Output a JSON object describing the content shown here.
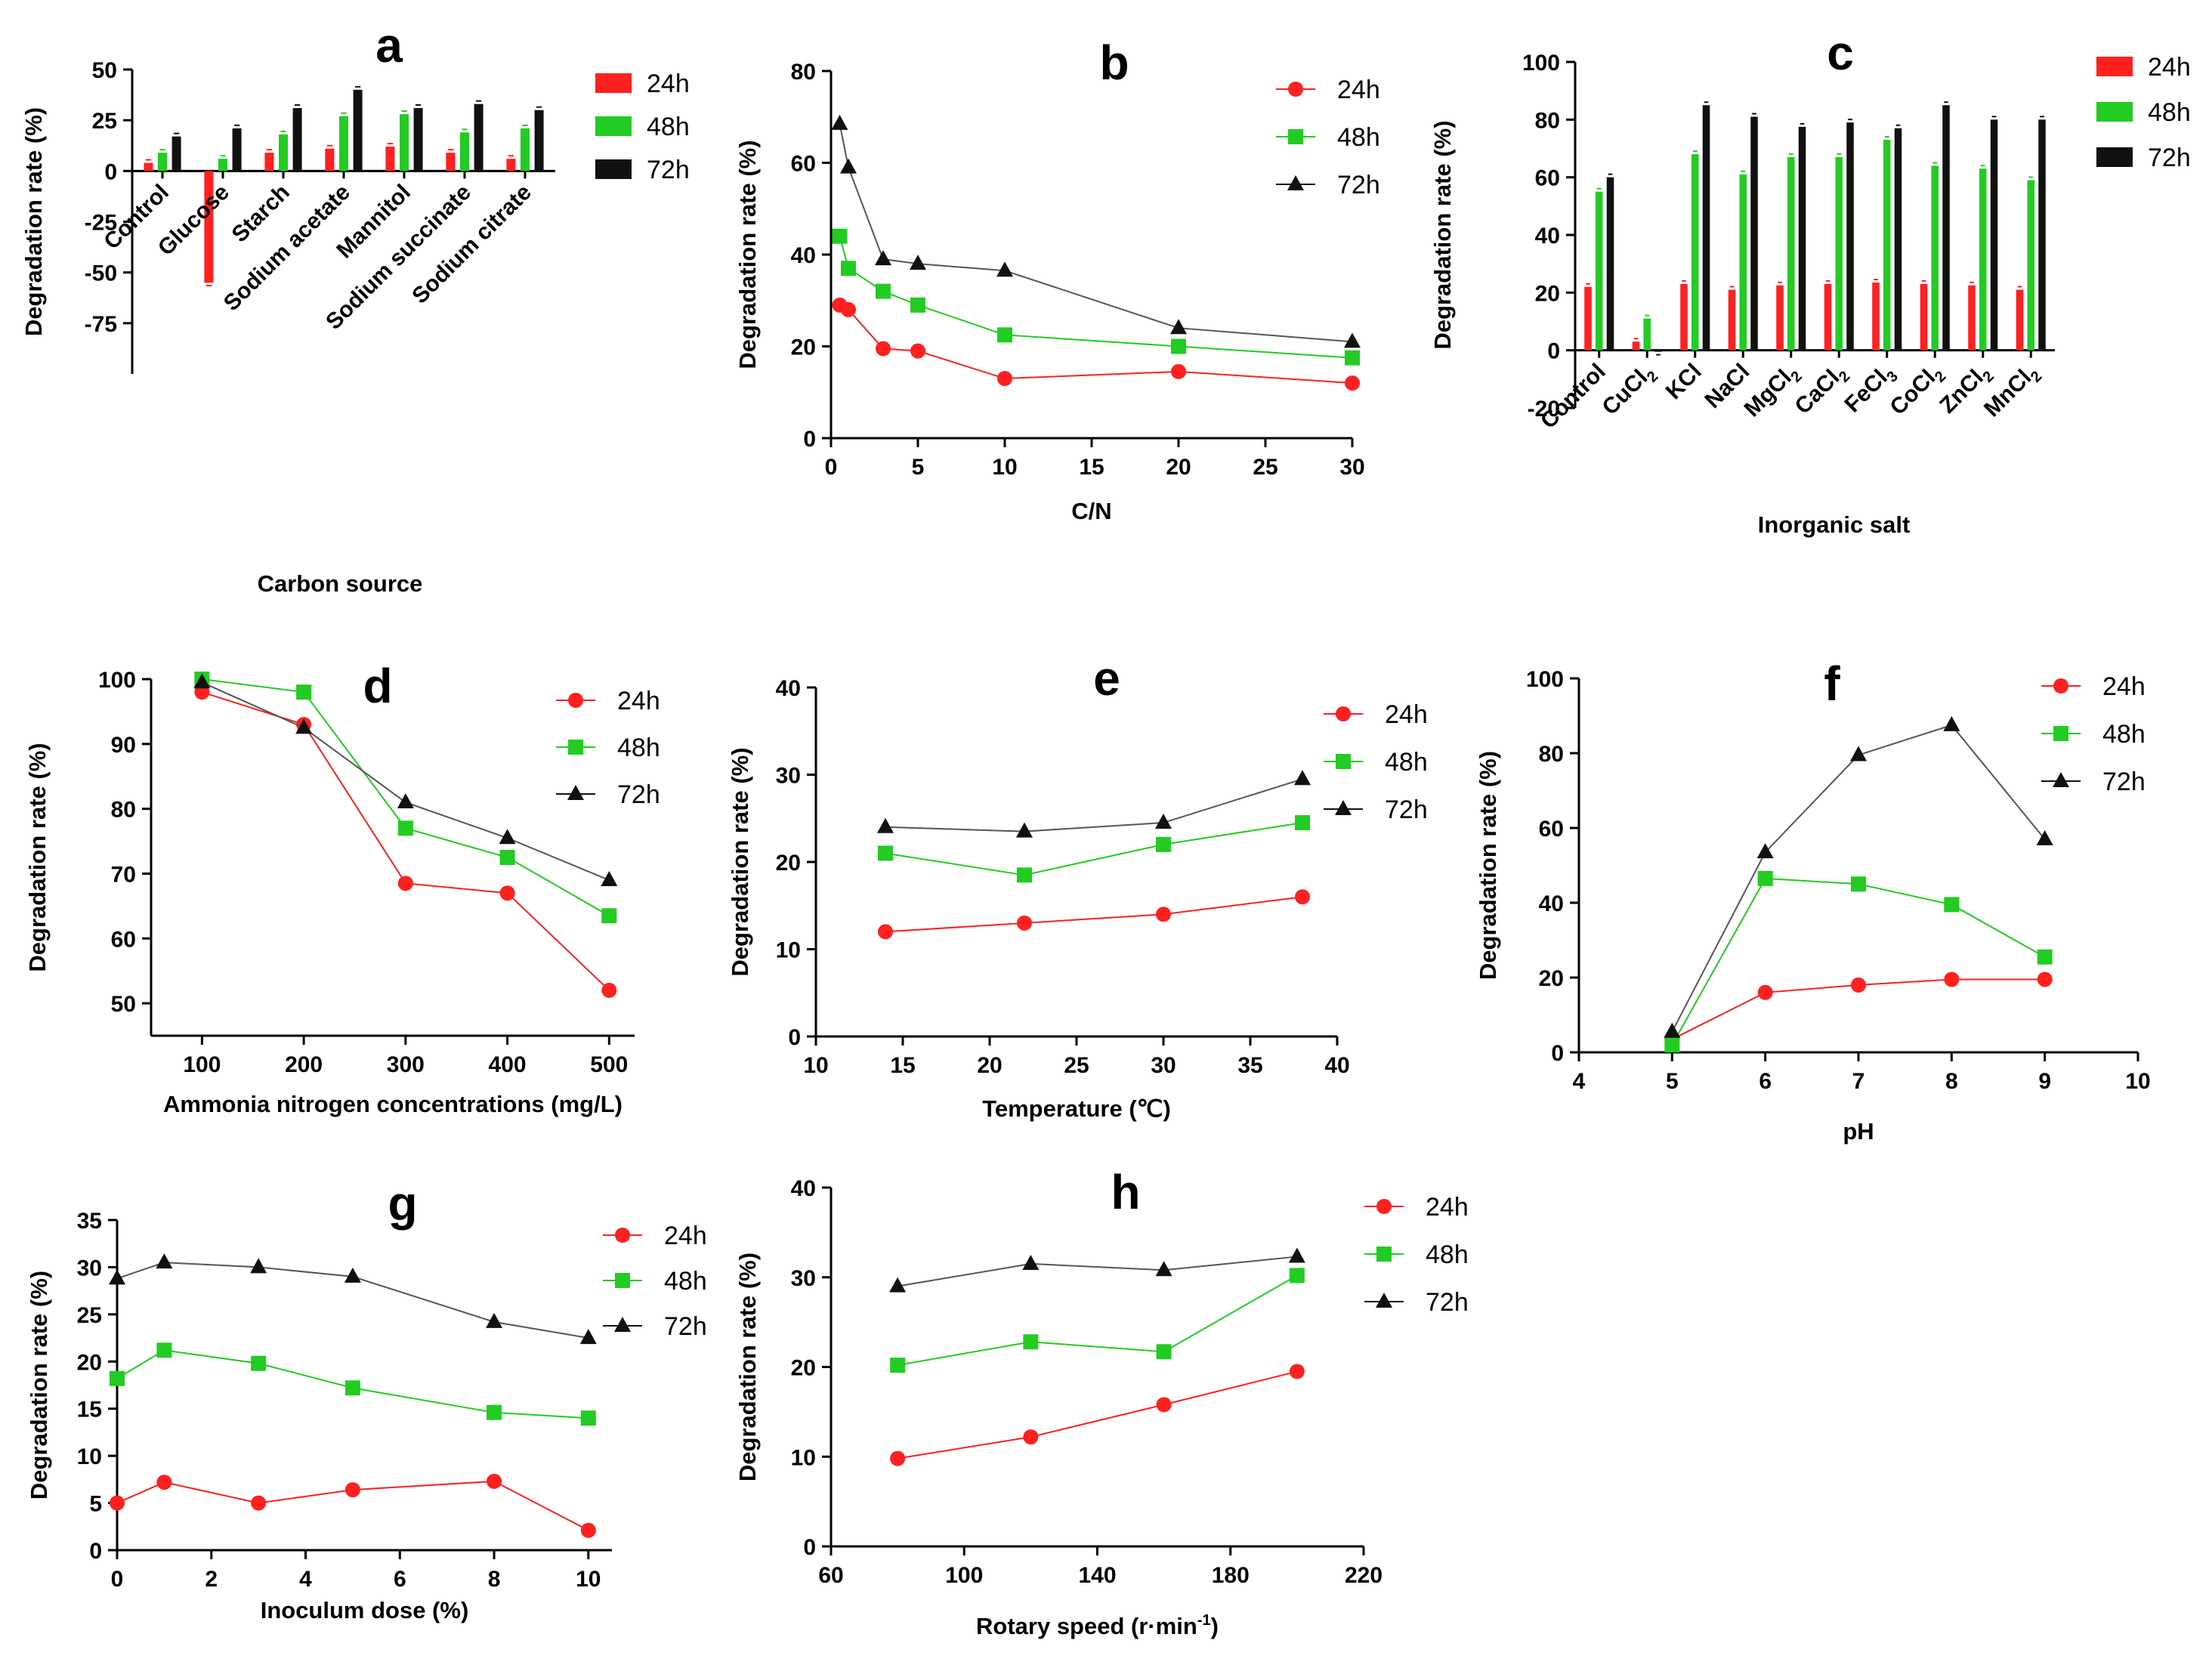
{
  "colors": {
    "24h": "#ff2020",
    "48h": "#22cc22",
    "72h": "#111111"
  },
  "chart_data": [
    {
      "id": "a",
      "type": "bar",
      "title": "a",
      "xlabel": "Carbon source",
      "ylabel": "Degradation rate (%)",
      "ylim": [
        -100,
        50
      ],
      "yticks": [
        50,
        25,
        0,
        -25,
        -50,
        -75
      ],
      "categories": [
        "Control",
        "Glucose",
        "Starch",
        "Sodium acetate",
        "Mannitol",
        "Sodium succinate",
        "Sodium citrate"
      ],
      "series": [
        {
          "name": "24h",
          "values": [
            4,
            -55,
            9,
            11,
            12,
            9,
            6
          ]
        },
        {
          "name": "48h",
          "values": [
            9,
            6,
            18,
            27,
            28,
            19,
            21
          ]
        },
        {
          "name": "72h",
          "values": [
            17,
            21,
            31,
            40,
            31,
            33,
            30
          ]
        }
      ],
      "legend": "top-right"
    },
    {
      "id": "b",
      "type": "line",
      "title": "b",
      "xlabel": "C/N",
      "ylabel": "Degradation rate (%)",
      "xlim": [
        0,
        30
      ],
      "xticks": [
        0,
        5,
        10,
        15,
        20,
        25,
        30
      ],
      "ylim": [
        0,
        80
      ],
      "yticks": [
        0,
        20,
        40,
        60,
        80
      ],
      "x": [
        0.5,
        1,
        3,
        5,
        10,
        20,
        30
      ],
      "series": [
        {
          "name": "24h",
          "values": [
            29,
            28,
            19.5,
            19,
            13,
            14.5,
            12
          ]
        },
        {
          "name": "48h",
          "values": [
            44,
            37,
            32,
            29,
            22.5,
            20,
            17.5
          ]
        },
        {
          "name": "72h",
          "values": [
            68.5,
            59,
            39,
            38,
            36.5,
            24,
            21
          ]
        }
      ],
      "legend": "top-right"
    },
    {
      "id": "c",
      "type": "bar",
      "title": "c",
      "xlabel": "Inorganic salt",
      "ylabel": "Degradation rate (%)",
      "ylim": [
        -20,
        100
      ],
      "yticks": [
        100,
        80,
        60,
        40,
        20,
        0,
        -20
      ],
      "categories": [
        "Control",
        "CuCl",
        "KCl",
        "NaCl",
        "MgCl",
        "CaCl",
        "FeCl",
        "CoCl",
        "ZnCl",
        "MnCl"
      ],
      "category_subscripts": [
        "",
        "2",
        "",
        "",
        "2",
        "2",
        "3",
        "2",
        "2",
        "2"
      ],
      "series": [
        {
          "name": "24h",
          "values": [
            22,
            3,
            23,
            21,
            22.5,
            23,
            23.5,
            23,
            22.5,
            21
          ]
        },
        {
          "name": "48h",
          "values": [
            55,
            11,
            68,
            61,
            67,
            67,
            73,
            64,
            63,
            59
          ]
        },
        {
          "name": "72h",
          "values": [
            60,
            -0.5,
            85,
            81,
            77.5,
            79,
            77,
            85,
            80,
            80
          ]
        }
      ],
      "legend": "top-right"
    },
    {
      "id": "d",
      "type": "line",
      "title": "d",
      "xlabel": "Ammonia nitrogen concentrations (mg/L)",
      "ylabel": "Degradation rate (%)",
      "xlim": [
        50,
        525
      ],
      "xticks": [
        100,
        200,
        300,
        400,
        500
      ],
      "ylim": [
        45,
        100
      ],
      "yticks": [
        50,
        60,
        70,
        80,
        90,
        100
      ],
      "x": [
        100,
        200,
        300,
        400,
        500
      ],
      "series": [
        {
          "name": "24h",
          "values": [
            98,
            93,
            68.5,
            67,
            52
          ]
        },
        {
          "name": "48h",
          "values": [
            100,
            98,
            77,
            72.5,
            63.5
          ]
        },
        {
          "name": "72h",
          "values": [
            99.5,
            92.5,
            81,
            75.5,
            69
          ]
        }
      ],
      "legend": "top-right"
    },
    {
      "id": "e",
      "type": "line",
      "title": "e",
      "xlabel": "Temperature (℃)",
      "ylabel": "Degradation rate (%)",
      "xlim": [
        10,
        40
      ],
      "xticks": [
        10,
        15,
        20,
        25,
        30,
        35,
        40
      ],
      "ylim": [
        0,
        40
      ],
      "yticks": [
        0,
        10,
        20,
        30,
        40
      ],
      "x": [
        14,
        22,
        30,
        38
      ],
      "series": [
        {
          "name": "24h",
          "values": [
            12,
            13,
            14,
            16
          ]
        },
        {
          "name": "48h",
          "values": [
            21,
            18.5,
            22,
            24.5
          ]
        },
        {
          "name": "72h",
          "values": [
            24,
            23.5,
            24.5,
            29.5
          ]
        }
      ],
      "legend": "top-right"
    },
    {
      "id": "f",
      "type": "line",
      "title": "f",
      "xlabel": "pH",
      "ylabel": "Degradation rate (%)",
      "xlim": [
        4,
        10
      ],
      "xticks": [
        4,
        5,
        6,
        7,
        8,
        9,
        10
      ],
      "ylim": [
        0,
        100
      ],
      "yticks": [
        0,
        20,
        40,
        60,
        80,
        100
      ],
      "x": [
        5,
        6,
        7,
        8,
        9
      ],
      "series": [
        {
          "name": "24h",
          "values": [
            3.5,
            16,
            18,
            19.5,
            19.5
          ]
        },
        {
          "name": "48h",
          "values": [
            2,
            46.5,
            45,
            39.5,
            25.5
          ]
        },
        {
          "name": "72h",
          "values": [
            5.5,
            53.5,
            79.5,
            87.5,
            57
          ]
        }
      ],
      "legend": "top-right"
    },
    {
      "id": "g",
      "type": "line",
      "title": "g",
      "xlabel": "Inoculum dose (%)",
      "ylabel": "Degradation rate (%)",
      "xlim": [
        0,
        10.5
      ],
      "xticks": [
        0,
        2,
        4,
        6,
        8,
        10
      ],
      "ylim": [
        0,
        35
      ],
      "yticks": [
        0,
        5,
        10,
        15,
        20,
        25,
        30,
        35
      ],
      "x": [
        0,
        1,
        3,
        5,
        8,
        10
      ],
      "series": [
        {
          "name": "24h",
          "values": [
            5,
            7.2,
            5,
            6.4,
            7.3,
            2.1
          ]
        },
        {
          "name": "48h",
          "values": [
            18.2,
            21.2,
            19.8,
            17.2,
            14.6,
            14
          ]
        },
        {
          "name": "72h",
          "values": [
            28.8,
            30.5,
            30,
            29,
            24.2,
            22.5
          ]
        }
      ],
      "legend": "top-right"
    },
    {
      "id": "h",
      "type": "line",
      "title": "h",
      "xlabel": "Rotary speed (r·min",
      "xlabel_superscript": "-1",
      "xlabel_suffix": ")",
      "ylabel": "Degradation rate (%)",
      "xlim": [
        60,
        220
      ],
      "xticks": [
        60,
        100,
        140,
        180,
        220
      ],
      "ylim": [
        0,
        40
      ],
      "yticks": [
        0,
        10,
        20,
        30,
        40
      ],
      "x": [
        80,
        120,
        160,
        200
      ],
      "series": [
        {
          "name": "24h",
          "values": [
            9.8,
            12.2,
            15.8,
            19.5
          ]
        },
        {
          "name": "48h",
          "values": [
            20.2,
            22.8,
            21.7,
            30.2
          ]
        },
        {
          "name": "72h",
          "values": [
            29,
            31.5,
            30.8,
            32.3
          ]
        }
      ],
      "legend": "right"
    }
  ]
}
